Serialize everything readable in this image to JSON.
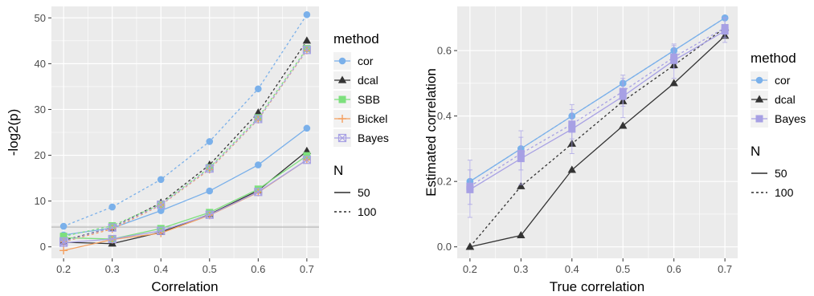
{
  "colors": {
    "cor": "#7ab0ea",
    "dcal": "#333333",
    "SBB": "#7de07d",
    "Bickel": "#f4a060",
    "Bayes": "#a7a0e4",
    "panel_bg": "#ebebeb",
    "grid": "#ffffff",
    "hline": "#b3b3b3"
  },
  "chart_data": [
    {
      "type": "line",
      "title": "",
      "xlabel": "Correlation",
      "ylabel": "-log2(p)",
      "x": [
        0.2,
        0.3,
        0.4,
        0.5,
        0.6,
        0.7
      ],
      "xticks": [
        "0.2",
        "0.3",
        "0.4",
        "0.5",
        "0.6",
        "0.7"
      ],
      "yticks": [
        0,
        10,
        20,
        30,
        40,
        50
      ],
      "xlim": [
        0.175,
        0.725
      ],
      "ylim": [
        -2.5,
        52.5
      ],
      "grid": true,
      "reference_hline": 4.32,
      "legend": {
        "method_title": "method",
        "methods": [
          "cor",
          "dcal",
          "SBB",
          "Bickel",
          "Bayes"
        ],
        "n_title": "N",
        "n_levels": [
          "50",
          "100"
        ]
      },
      "series": [
        {
          "name": "cor",
          "N": "50",
          "marker": "circle",
          "values": [
            2.6,
            4.1,
            7.9,
            12.2,
            17.9,
            25.9
          ]
        },
        {
          "name": "cor",
          "N": "100",
          "marker": "circle",
          "values": [
            4.5,
            8.7,
            14.7,
            23.0,
            34.5,
            50.7
          ]
        },
        {
          "name": "dcal",
          "N": "50",
          "marker": "triangle",
          "values": [
            1.0,
            0.7,
            3.2,
            7.1,
            12.3,
            20.9
          ]
        },
        {
          "name": "dcal",
          "N": "100",
          "marker": "triangle",
          "values": [
            1.4,
            4.2,
            9.6,
            17.9,
            29.3,
            45.0
          ]
        },
        {
          "name": "SBB",
          "N": "50",
          "marker": "square",
          "values": [
            2.0,
            1.7,
            4.0,
            7.5,
            12.6,
            19.9
          ]
        },
        {
          "name": "SBB",
          "N": "100",
          "marker": "square",
          "values": [
            2.3,
            4.6,
            9.3,
            17.3,
            28.2,
            43.3
          ]
        },
        {
          "name": "Bickel",
          "N": "50",
          "marker": "plus",
          "values": [
            -0.8,
            1.6,
            3.0,
            6.9,
            11.9,
            19.0
          ]
        },
        {
          "name": "Bickel",
          "N": "100",
          "marker": "plus",
          "values": [
            1.1,
            3.9,
            9.1,
            16.9,
            27.8,
            42.9
          ]
        },
        {
          "name": "Bayes",
          "N": "50",
          "marker": "boxcross",
          "values": [
            0.9,
            1.7,
            3.5,
            7.0,
            12.0,
            19.0
          ]
        },
        {
          "name": "Bayes",
          "N": "100",
          "marker": "boxcross",
          "values": [
            1.2,
            4.2,
            9.2,
            17.1,
            27.9,
            43.0
          ]
        }
      ]
    },
    {
      "type": "line",
      "title": "",
      "xlabel": "True correlation",
      "ylabel": "Estimated correlation",
      "x": [
        0.2,
        0.3,
        0.4,
        0.5,
        0.6,
        0.7
      ],
      "xticks": [
        "0.2",
        "0.3",
        "0.4",
        "0.5",
        "0.6",
        "0.7"
      ],
      "yticks": [
        "0.0",
        "0.2",
        "0.4",
        "0.6"
      ],
      "xlim": [
        0.175,
        0.725
      ],
      "ylim": [
        -0.035,
        0.735
      ],
      "grid": true,
      "legend": {
        "method_title": "method",
        "methods": [
          "cor",
          "dcal",
          "Bayes"
        ],
        "n_title": "N",
        "n_levels": [
          "50",
          "100"
        ]
      },
      "series": [
        {
          "name": "cor",
          "N": "50",
          "marker": "circle",
          "values": [
            0.2,
            0.3,
            0.4,
            0.5,
            0.6,
            0.7
          ]
        },
        {
          "name": "cor",
          "N": "100",
          "marker": "circle",
          "values": [
            0.2,
            0.3,
            0.4,
            0.5,
            0.6,
            0.7
          ]
        },
        {
          "name": "dcal",
          "N": "50",
          "marker": "triangle",
          "values": [
            0.0,
            0.035,
            0.235,
            0.37,
            0.5,
            0.645
          ]
        },
        {
          "name": "dcal",
          "N": "100",
          "marker": "triangle",
          "values": [
            0.0,
            0.185,
            0.315,
            0.445,
            0.555,
            0.67
          ]
        },
        {
          "name": "Bayes",
          "N": "50",
          "marker": "square",
          "values": [
            0.175,
            0.27,
            0.36,
            0.46,
            0.57,
            0.66
          ],
          "error": [
            [
              0.09,
              0.265
            ],
            [
              0.19,
              0.355
            ],
            [
              0.285,
              0.435
            ],
            [
              0.395,
              0.525
            ],
            [
              0.515,
              0.62
            ],
            [
              0.625,
              0.7
            ]
          ]
        },
        {
          "name": "Bayes",
          "N": "100",
          "marker": "square",
          "values": [
            0.185,
            0.285,
            0.375,
            0.475,
            0.58,
            0.67
          ],
          "error": [
            [
              0.13,
              0.235
            ],
            [
              0.235,
              0.335
            ],
            [
              0.33,
              0.42
            ],
            [
              0.43,
              0.515
            ],
            [
              0.545,
              0.615
            ],
            [
              0.64,
              0.7
            ]
          ]
        }
      ]
    }
  ]
}
